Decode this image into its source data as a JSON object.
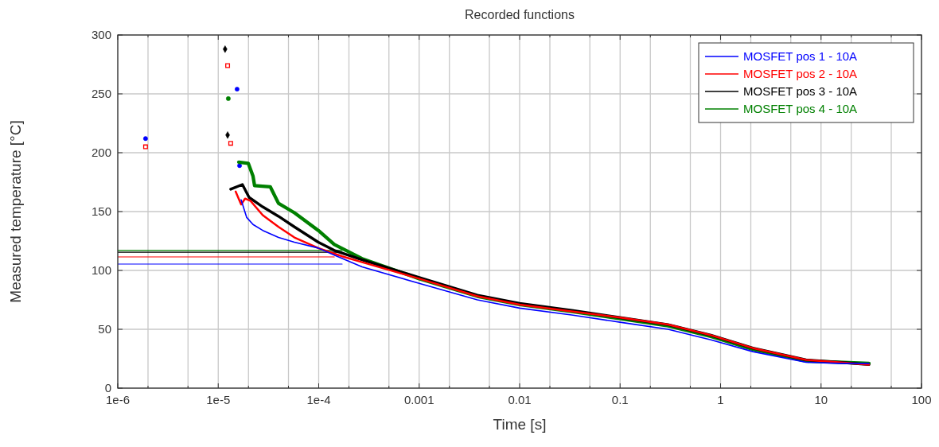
{
  "chart_data": {
    "type": "line",
    "title": "Recorded functions",
    "xlabel": "Time [s]",
    "ylabel": "Measured temperature [°C]",
    "log": "x",
    "grid": true,
    "legend": "top right",
    "xlim": [
      1e-06,
      100
    ],
    "ylim": [
      0,
      300
    ],
    "xticks": [
      {
        "value": 1e-06,
        "label": "1e-6"
      },
      {
        "value": 2e-06,
        "label": null
      },
      {
        "value": 5e-06,
        "label": null
      },
      {
        "value": 1e-05,
        "label": "1e-5"
      },
      {
        "value": 2e-05,
        "label": null
      },
      {
        "value": 5e-05,
        "label": null
      },
      {
        "value": 0.0001,
        "label": "1e-4"
      },
      {
        "value": 0.0002,
        "label": null
      },
      {
        "value": 0.0005,
        "label": null
      },
      {
        "value": 0.001,
        "label": "0.001"
      },
      {
        "value": 0.002,
        "label": null
      },
      {
        "value": 0.005,
        "label": null
      },
      {
        "value": 0.01,
        "label": "0.01"
      },
      {
        "value": 0.02,
        "label": null
      },
      {
        "value": 0.05,
        "label": null
      },
      {
        "value": 0.1,
        "label": "0.1"
      },
      {
        "value": 0.2,
        "label": null
      },
      {
        "value": 0.5,
        "label": null
      },
      {
        "value": 1,
        "label": "1"
      },
      {
        "value": 2,
        "label": null
      },
      {
        "value": 5,
        "label": null
      },
      {
        "value": 10,
        "label": "10"
      },
      {
        "value": 20,
        "label": null
      },
      {
        "value": 50,
        "label": null
      },
      {
        "value": 100,
        "label": "100"
      }
    ],
    "yticks": [
      0,
      50,
      100,
      150,
      200,
      250,
      300
    ],
    "series": [
      {
        "name": "MOSFET pos 1 - 10A",
        "color": "#0000ff",
        "x": [
          1.69e-05,
          1.92e-05,
          2.22e-05,
          2.77e-05,
          3.98e-05,
          5.73e-05,
          9.9e-05,
          0.000143,
          0.00027,
          0.001,
          0.0038,
          0.01,
          0.034,
          0.1,
          0.3,
          0.8,
          2.1,
          7.1,
          15,
          30
        ],
        "values": [
          160,
          145,
          139,
          134,
          128,
          124,
          119,
          113,
          103,
          89,
          75,
          68,
          62,
          56,
          50,
          41,
          31,
          22,
          21,
          21
        ]
      },
      {
        "name": "MOSFET pos 2 - 10A",
        "color": "#ff0000",
        "x": [
          1.49e-05,
          1.69e-05,
          1.85e-05,
          2.1e-05,
          2.77e-05,
          3.98e-05,
          5.73e-05,
          9.9e-05,
          0.000171,
          0.00027,
          0.001,
          0.0038,
          0.01,
          0.034,
          0.1,
          0.3,
          0.8,
          2.1,
          7.1,
          15,
          30
        ],
        "values": [
          167,
          156,
          161,
          159,
          147,
          137,
          128,
          119,
          112,
          107,
          93,
          78,
          71,
          65,
          60,
          54,
          45,
          34,
          24,
          22,
          20
        ]
      },
      {
        "name": "MOSFET pos 3 - 10A",
        "color": "#000000",
        "x": [
          1.33e-05,
          1.74e-05,
          2.03e-05,
          2.77e-05,
          3.98e-05,
          5.73e-05,
          9.9e-05,
          0.000143,
          0.00027,
          0.001,
          0.0038,
          0.01,
          0.034,
          0.1,
          0.3,
          0.8,
          2.1,
          7.1,
          15,
          30
        ],
        "values": [
          169,
          173,
          162,
          154,
          146,
          137,
          124,
          117,
          109,
          94,
          79,
          72,
          66,
          60,
          54,
          45,
          34,
          24,
          22,
          20
        ]
      },
      {
        "name": "MOSFET pos 4 - 10A",
        "color": "#008000",
        "x": [
          1.6e-05,
          1.99e-05,
          2.22e-05,
          2.3e-05,
          3.3e-05,
          3.98e-05,
          5.73e-05,
          9.9e-05,
          0.000143,
          0.00027,
          0.001,
          0.0038,
          0.01,
          0.034,
          0.1,
          0.3,
          0.8,
          2.1,
          7.1,
          15,
          30
        ],
        "values": [
          192,
          191,
          180,
          172,
          171,
          157,
          149,
          134,
          122,
          110,
          93,
          78,
          71,
          65,
          59,
          53,
          44,
          33,
          23,
          22,
          21
        ]
      },
      {
        "color": "#0000ff",
        "x": [
          1e-06,
          0.000171
        ],
        "values": [
          105.4,
          105.4
        ]
      },
      {
        "color": "#ff0000",
        "x": [
          1e-06,
          0.000143
        ],
        "values": [
          111.5,
          111.5
        ]
      },
      {
        "color": "#000000",
        "x": [
          1e-06,
          0.000171
        ],
        "values": [
          115.5,
          115.5
        ]
      },
      {
        "color": "#008000",
        "x": [
          1e-06,
          0.000171
        ],
        "values": [
          117,
          117
        ]
      },
      {
        "type": "scatter",
        "marker": "circle",
        "color": "#0000ff",
        "x": [
          1.89e-06,
          1.54e-05,
          1.63e-05
        ],
        "values": [
          212,
          254,
          189
        ]
      },
      {
        "type": "scatter",
        "marker": "square",
        "color": "#ff0000",
        "x": [
          1.89e-06,
          1.24e-05,
          1.33e-05
        ],
        "values": [
          205,
          274,
          208
        ]
      },
      {
        "type": "scatter",
        "marker": "diamond",
        "color": "#000000",
        "x": [
          1.17e-05,
          1.24e-05
        ],
        "values": [
          288,
          215
        ]
      },
      {
        "type": "scatter",
        "marker": "circle",
        "color": "#008000",
        "x": [
          1.26e-05
        ],
        "values": [
          246
        ]
      }
    ]
  }
}
